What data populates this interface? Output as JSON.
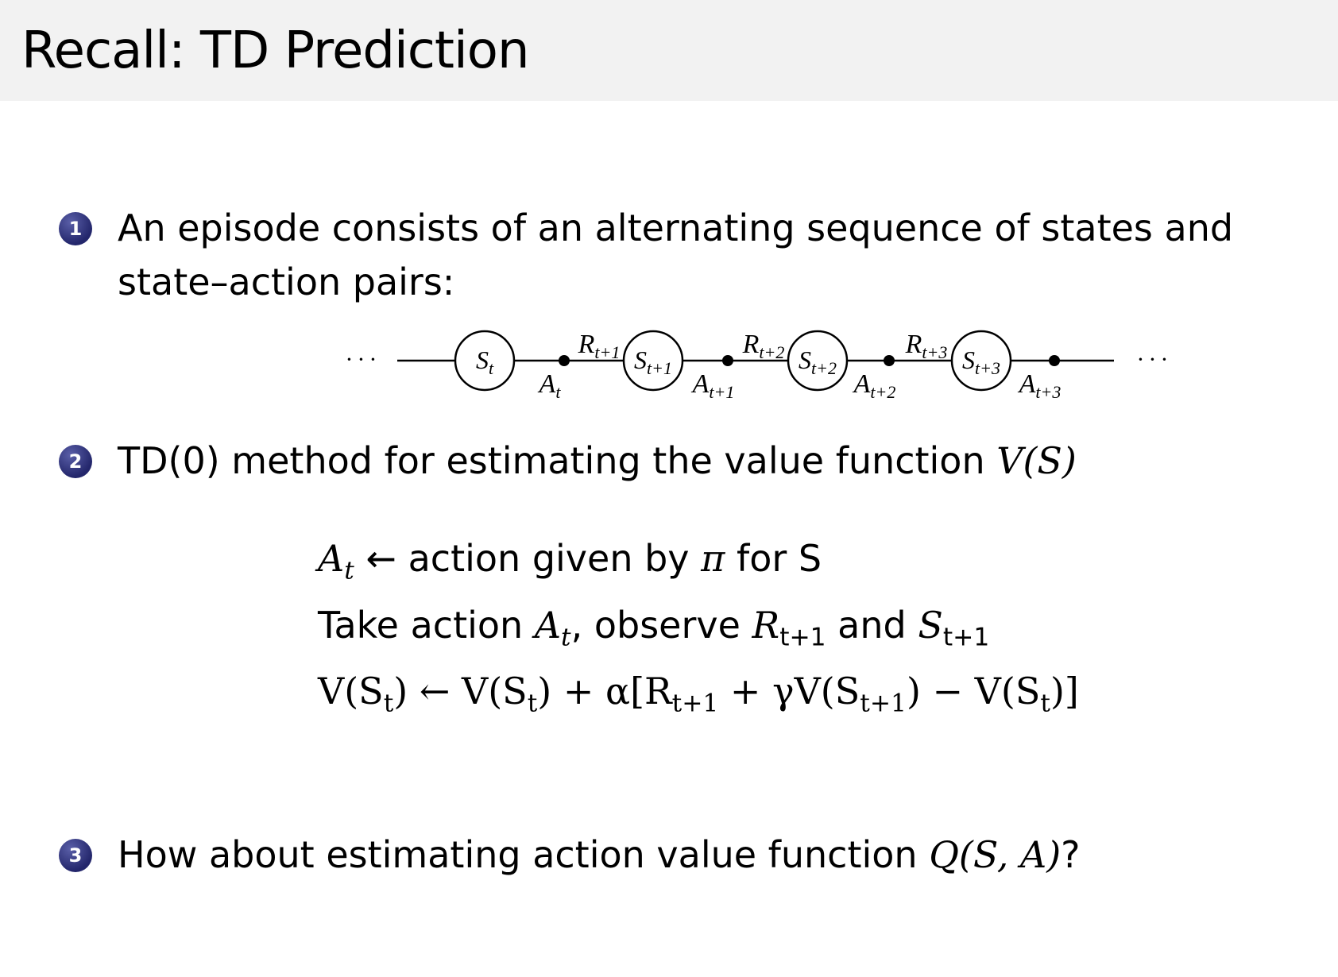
{
  "header": {
    "title": "Recall:  TD Prediction"
  },
  "items": [
    {
      "number": "1",
      "line1": "An episode consists of an alternating sequence of states and",
      "line2": "state–action pairs:"
    },
    {
      "number": "2",
      "text": "TD(0) method for estimating the value function ",
      "math": "V(S)"
    },
    {
      "number": "3",
      "text": "How about estimating action value function ",
      "math": "Q(S, A)",
      "suffix": "?"
    }
  ],
  "diagram": {
    "ellipsis": "· · ·",
    "states": [
      {
        "base": "S",
        "sub": "t"
      },
      {
        "base": "S",
        "sub": "t+1"
      },
      {
        "base": "S",
        "sub": "t+2"
      },
      {
        "base": "S",
        "sub": "t+3"
      }
    ],
    "actions": [
      {
        "base": "A",
        "sub": "t"
      },
      {
        "base": "A",
        "sub": "t+1"
      },
      {
        "base": "A",
        "sub": "t+2"
      },
      {
        "base": "A",
        "sub": "t+3"
      }
    ],
    "rewards": [
      {
        "base": "R",
        "sub": "t+1"
      },
      {
        "base": "R",
        "sub": "t+2"
      },
      {
        "base": "R",
        "sub": "t+3"
      }
    ]
  },
  "equations": {
    "line1": {
      "lhs": "A",
      "lhs_sub": "t",
      "arrow": " ← ",
      "text": "action given by ",
      "pi": "π",
      "text2": " for S"
    },
    "line2": {
      "text": "Take action ",
      "a": "A",
      "a_sub": "t",
      "text2": ", observe ",
      "r": "R",
      "r_sub": "t+1",
      "text3": " and ",
      "s": "S",
      "s_sub": "t+1"
    },
    "line3": {
      "p1": "V(S",
      "s1": "t",
      "p2": ") ← V(S",
      "s2": "t",
      "p3": ") + α[R",
      "s3": "t+1",
      "p4": " + γV(S",
      "s4": "t+1",
      "p5": ") − V(S",
      "s5": "t",
      "p6": ")]"
    }
  }
}
